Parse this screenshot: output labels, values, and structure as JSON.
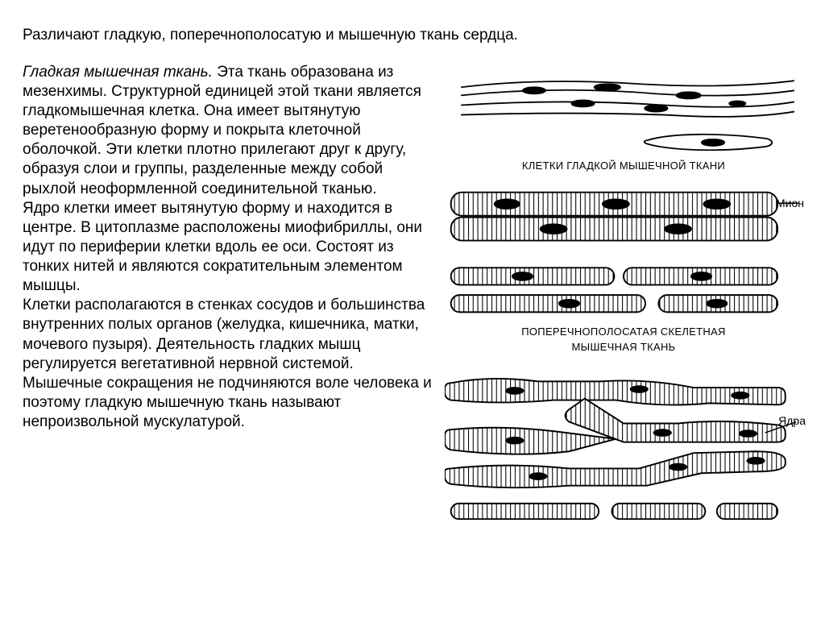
{
  "intro": "Различают гладкую, поперечнополосатую и мышечную ткань сердца.",
  "subtitle": "Гладкая мышечная ткань.",
  "body": "Эта ткань образована из мезенхимы. Структурной единицей этой ткани является гладкомышечная клетка. Она имеет вытянутую веретенообразную форму и покрыта клеточной оболочкой. Эти клетки плотно прилегают друг к другу, образуя слои и группы, разделенные между собой рыхлой неоформленной соединительной тканью.\nЯдро клетки имеет вытянутую форму и находится в центре. В цитоплазме расположены миофибриллы, они идут по периферии клетки вдоль ее оси. Состоят из тонких нитей и являются сократительным элементом мышцы.\nКлетки располагаются в стенках сосудов и большинства внутренних полых органов (желудка, кишечника, матки, мочевого пузыря). Деятельность гладких мышц регулируется вегетативной нервной системой. Мышечные сокращения не подчиняются воле человека и поэтому гладкую мышечную ткань называют непроизвольной мускулатурой.",
  "figures": {
    "smooth": {
      "caption": "КЛЕТКИ ГЛАДКОЙ МЫШЕЧНОЙ ТКАНИ"
    },
    "skeletal": {
      "caption_line1": "ПОПЕРЕЧНОПОЛОСАТАЯ СКЕЛЕТНАЯ",
      "caption_line2": "МЫШЕЧНАЯ ТКАНЬ",
      "label": "Мион"
    },
    "cardiac": {
      "label": "Ядра"
    }
  },
  "colors": {
    "stroke": "#000000",
    "bg": "#ffffff",
    "fill_light": "#ffffff"
  }
}
